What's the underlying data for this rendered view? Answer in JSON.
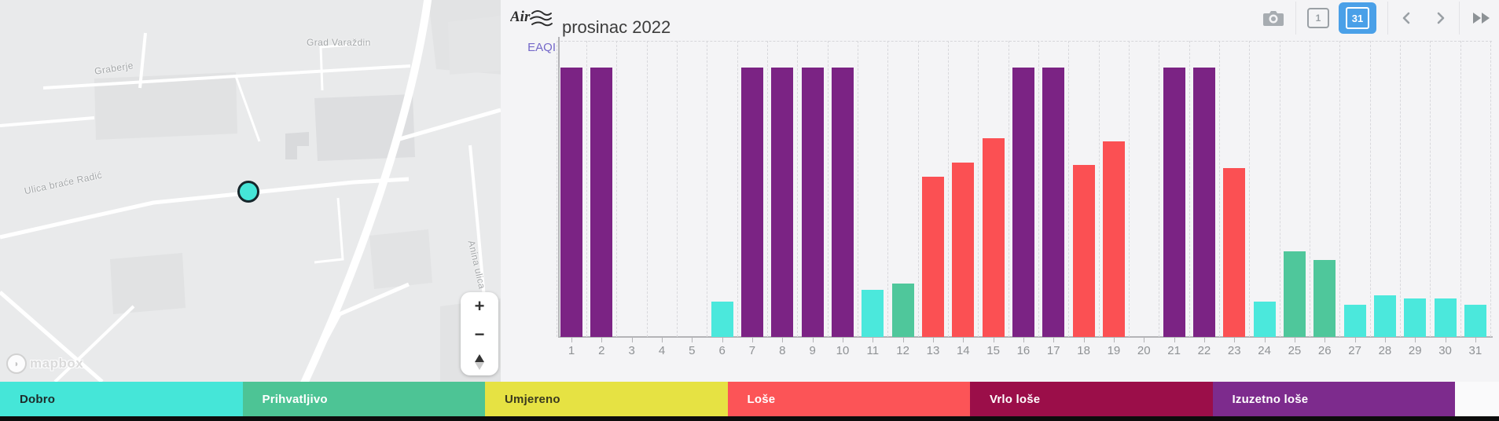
{
  "header": {
    "title": "prosinac 2022",
    "logo_text": "Air"
  },
  "toolbar": {
    "camera_icon": "camera",
    "day_view_label": "1",
    "month_view_label": "31",
    "active_view_color": "#4aa0e8"
  },
  "map": {
    "labels": {
      "grad_varazdin": "Grad Varaždin",
      "graberje": "Graberje",
      "ulica_brace_radic": "Ulica braće Radić",
      "anina_ulica": "Anina ulica"
    },
    "attribution": "mapbox",
    "zoom_in": "+",
    "zoom_out": "−",
    "marker_color": "#45e6d8"
  },
  "legend": {
    "items": [
      {
        "id": "dobro",
        "label": "Dobro",
        "color": "#45e6d8",
        "text_color": "#1d2b2a"
      },
      {
        "id": "prihvatljivo",
        "label": "Prihvatljivo",
        "color": "#4dc495",
        "text_color": "#ffffff"
      },
      {
        "id": "umjereno",
        "label": "Umjereno",
        "color": "#e6e243",
        "text_color": "#3a3a1e"
      },
      {
        "id": "lose",
        "label": "Loše",
        "color": "#fc5457",
        "text_color": "#ffffff"
      },
      {
        "id": "vrlo_lose",
        "label": "Vrlo loše",
        "color": "#9b0e49",
        "text_color": "#ffffff"
      },
      {
        "id": "izuzetno_lose",
        "label": "Izuzetno loše",
        "color": "#7d2b8d",
        "text_color": "#ffffff"
      }
    ]
  },
  "chart_data": {
    "type": "bar",
    "title": "prosinac 2022",
    "ylabel": "EAQI",
    "xlabel": "",
    "ylim": [
      0,
      100
    ],
    "grid": "dashed-vertical",
    "legend_position": "bottom",
    "categories": [
      "1",
      "2",
      "3",
      "4",
      "5",
      "6",
      "7",
      "8",
      "9",
      "10",
      "11",
      "12",
      "13",
      "14",
      "15",
      "16",
      "17",
      "18",
      "19",
      "20",
      "21",
      "22",
      "23",
      "24",
      "25",
      "26",
      "27",
      "28",
      "29",
      "30",
      "31"
    ],
    "value_unit": "percent_of_full_scale",
    "days": [
      {
        "day": 1,
        "level": "izuzetno_lose",
        "value": 91
      },
      {
        "day": 2,
        "level": "izuzetno_lose",
        "value": 91
      },
      {
        "day": 3,
        "level": null,
        "value": 0
      },
      {
        "day": 4,
        "level": null,
        "value": 0
      },
      {
        "day": 5,
        "level": null,
        "value": 0
      },
      {
        "day": 6,
        "level": "dobro",
        "value": 12
      },
      {
        "day": 7,
        "level": "izuzetno_lose",
        "value": 91
      },
      {
        "day": 8,
        "level": "izuzetno_lose",
        "value": 91
      },
      {
        "day": 9,
        "level": "izuzetno_lose",
        "value": 91
      },
      {
        "day": 10,
        "level": "izuzetno_lose",
        "value": 91
      },
      {
        "day": 11,
        "level": "dobro",
        "value": 16
      },
      {
        "day": 12,
        "level": "prihvatljivo",
        "value": 18
      },
      {
        "day": 13,
        "level": "lose",
        "value": 54
      },
      {
        "day": 14,
        "level": "lose",
        "value": 59
      },
      {
        "day": 15,
        "level": "lose",
        "value": 67
      },
      {
        "day": 16,
        "level": "izuzetno_lose",
        "value": 91
      },
      {
        "day": 17,
        "level": "izuzetno_lose",
        "value": 91
      },
      {
        "day": 18,
        "level": "lose",
        "value": 58
      },
      {
        "day": 19,
        "level": "lose",
        "value": 66
      },
      {
        "day": 20,
        "level": null,
        "value": 0
      },
      {
        "day": 21,
        "level": "izuzetno_lose",
        "value": 91
      },
      {
        "day": 22,
        "level": "izuzetno_lose",
        "value": 91
      },
      {
        "day": 23,
        "level": "lose",
        "value": 57
      },
      {
        "day": 24,
        "level": "dobro",
        "value": 12
      },
      {
        "day": 25,
        "level": "prihvatljivo",
        "value": 29
      },
      {
        "day": 26,
        "level": "prihvatljivo",
        "value": 26
      },
      {
        "day": 27,
        "level": "dobro",
        "value": 11
      },
      {
        "day": 28,
        "level": "dobro",
        "value": 14
      },
      {
        "day": 29,
        "level": "dobro",
        "value": 13
      },
      {
        "day": 30,
        "level": "dobro",
        "value": 13
      },
      {
        "day": 31,
        "level": "dobro",
        "value": 11
      }
    ],
    "level_colors": {
      "dobro": "#4be8dc",
      "prihvatljivo": "#4fc79b",
      "umjereno": "#e6e243",
      "lose": "#fb5053",
      "vrlo_lose": "#9b0e49",
      "izuzetno_lose": "#7b2384"
    }
  }
}
